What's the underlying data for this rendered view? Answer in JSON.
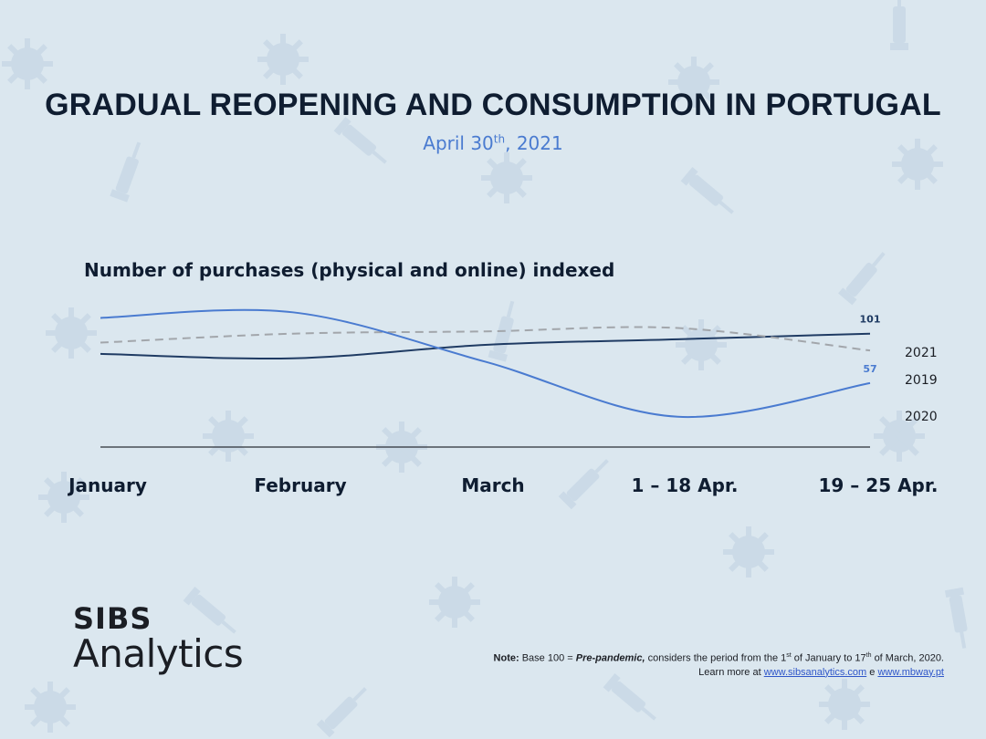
{
  "header": {
    "title": "GRADUAL REOPENING AND CONSUMPTION IN PORTUGAL",
    "date_pre": "April 30",
    "date_sup": "th",
    "date_post": ", 2021"
  },
  "logo": {
    "brand": "SIBS",
    "product": "Analytics"
  },
  "note": {
    "label": "Note:",
    "base_text": "Base 100 =",
    "base_term": "Pre-pandemic,",
    "text_1": "considers the period from the 1",
    "sup_1": "st",
    "text_2": "of January to 17",
    "sup_2": "th",
    "text_3": "of March, 2020.",
    "learn_more": "Learn more at",
    "link_1": "www.sibsanalytics.com",
    "conj": "e",
    "link_2": "www.mbway.pt"
  },
  "colors": {
    "background": "#dbe7ef",
    "series_2021": "#1f3b63",
    "series_2020": "#4a7bd0",
    "series_2019": "#a2a6ab",
    "axis": "#2b2f36"
  },
  "chart_data": {
    "type": "line",
    "title": "Number of purchases (physical and online) indexed",
    "categories": [
      "January",
      "February",
      "March",
      "1 – 18 Apr.",
      "19 – 25 Apr."
    ],
    "ylim": [
      0,
      130
    ],
    "grid": false,
    "legend": "right end labels",
    "series": [
      {
        "name": "2021",
        "values": [
          83,
          79,
          91,
          96,
          101
        ],
        "label": "101",
        "dashed": false
      },
      {
        "name": "2019",
        "values": [
          93,
          101,
          103,
          106,
          86
        ],
        "label": "",
        "dashed": true
      },
      {
        "name": "2020",
        "values": [
          115,
          120,
          76,
          27,
          57
        ],
        "label": "57",
        "dashed": false
      }
    ]
  }
}
